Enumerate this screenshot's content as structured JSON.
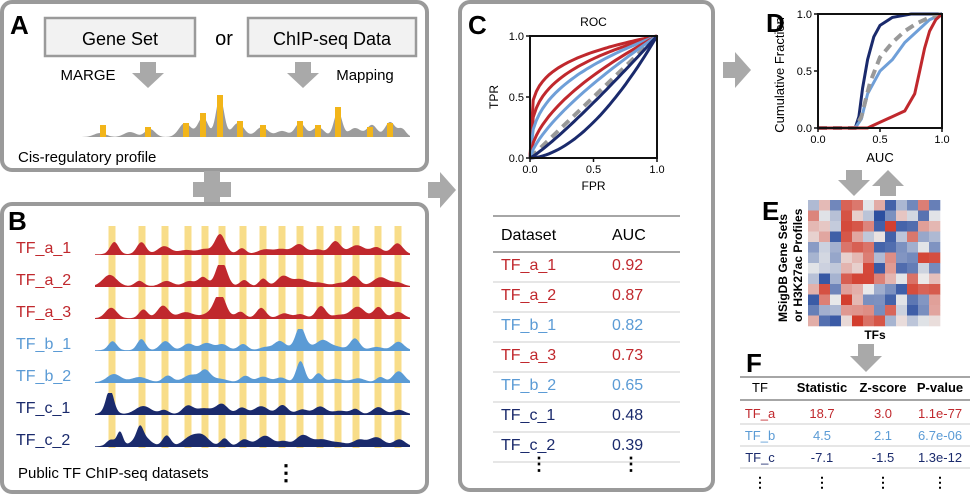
{
  "panels": {
    "A": {
      "letter": "A",
      "input_left": "Gene Set",
      "connector": "or",
      "input_right": "ChIP-seq Data",
      "method_left": "MARGE",
      "method_right": "Mapping",
      "profile_label": "Cis-regulatory profile"
    },
    "B": {
      "letter": "B",
      "tracks": [
        {
          "label": "TF_a_1",
          "color": "#c0282d"
        },
        {
          "label": "TF_a_2",
          "color": "#c0282d"
        },
        {
          "label": "TF_a_3",
          "color": "#c0282d"
        },
        {
          "label": "TF_b_1",
          "color": "#5b9bd5"
        },
        {
          "label": "TF_b_2",
          "color": "#5b9bd5"
        },
        {
          "label": "TF_c_1",
          "color": "#1a2a6c"
        },
        {
          "label": "TF_c_2",
          "color": "#1a2a6c"
        }
      ],
      "footer": "Public TF  ChIP-seq datasets",
      "more": "⋮"
    },
    "C": {
      "letter": "C",
      "table_header": [
        "Dataset",
        "AUC"
      ],
      "rows": [
        {
          "dataset": "TF_a_1",
          "auc": "0.92",
          "color": "#c0282d"
        },
        {
          "dataset": "TF_a_2",
          "auc": "0.87",
          "color": "#c0282d"
        },
        {
          "dataset": "TF_b_1",
          "auc": "0.82",
          "color": "#5b9bd5"
        },
        {
          "dataset": "TF_a_3",
          "auc": "0.73",
          "color": "#c0282d"
        },
        {
          "dataset": "TF_b_2",
          "auc": "0.65",
          "color": "#5b9bd5"
        },
        {
          "dataset": "TF_c_1",
          "auc": "0.48",
          "color": "#1a2a6c"
        },
        {
          "dataset": "TF_c_2",
          "auc": "0.39",
          "color": "#1a2a6c"
        }
      ],
      "more": "⋮"
    },
    "D": {
      "letter": "D"
    },
    "E": {
      "letter": "E",
      "ylabel_line1": "MSigDB Gene Sets",
      "ylabel_line2": "or H3K27ac Profiles",
      "xlabel": "TFs"
    },
    "F": {
      "letter": "F",
      "header": [
        "TF",
        "Statistic",
        "Z-score",
        "P-value"
      ],
      "rows": [
        {
          "tf": "TF_a",
          "statistic": "18.7",
          "zscore": "3.0",
          "pvalue": "1.1e-77",
          "color": "#c0282d"
        },
        {
          "tf": "TF_b",
          "statistic": "4.5",
          "zscore": "2.1",
          "pvalue": "6.7e-06",
          "color": "#5b9bd5"
        },
        {
          "tf": "TF_c",
          "statistic": "-7.1",
          "zscore": "-1.5",
          "pvalue": "1.3e-12",
          "color": "#1a2a6c"
        }
      ],
      "more": "⋮"
    }
  },
  "roc_chart": {
    "type": "line",
    "title": "ROC",
    "xlabel": "FPR",
    "ylabel": "TPR",
    "xlim": [
      0,
      1
    ],
    "ylim": [
      0,
      1
    ],
    "xticks": [
      "0.0",
      "0.5",
      "1.0"
    ],
    "yticks": [
      "0.0",
      "0.5",
      "1.0"
    ],
    "series_style": [
      {
        "color": "#c0282d",
        "strength": 0.92
      },
      {
        "color": "#c0282d",
        "strength": 0.87
      },
      {
        "color": "#6f9fd8",
        "strength": 0.82
      },
      {
        "color": "#c0282d",
        "strength": 0.73
      },
      {
        "color": "#6f9fd8",
        "strength": 0.65
      },
      {
        "color": "#1a2a6c",
        "strength": 0.48
      },
      {
        "color": "#1a2a6c",
        "strength": 0.39
      }
    ],
    "reference_color": "#999999"
  },
  "cdf_chart": {
    "type": "line",
    "xlabel": "AUC",
    "ylabel": "Cumulative Fraction",
    "xlim": [
      0,
      1
    ],
    "ylim": [
      0,
      1
    ],
    "xticks": [
      "0.0",
      "0.5",
      "1.0"
    ],
    "yticks": [
      "0.0",
      "0.5",
      "1.0"
    ],
    "series": [
      {
        "color": "#1a2a6c",
        "x": [
          0.0,
          0.3,
          0.33,
          0.36,
          0.4,
          0.45,
          0.5,
          0.6,
          0.75,
          1.0
        ],
        "y": [
          0,
          0,
          0.1,
          0.35,
          0.6,
          0.8,
          0.9,
          0.97,
          1.0,
          1.0
        ]
      },
      {
        "color": "#6f9fd8",
        "x": [
          0.0,
          0.3,
          0.35,
          0.4,
          0.5,
          0.6,
          0.7,
          0.8,
          0.9,
          1.0
        ],
        "y": [
          0,
          0,
          0.08,
          0.3,
          0.5,
          0.6,
          0.75,
          0.85,
          0.95,
          1.0
        ]
      },
      {
        "color": "#999999",
        "dashed": true,
        "x": [
          0.0,
          0.3,
          0.35,
          0.42,
          0.5,
          0.6,
          0.7,
          0.8,
          0.9,
          1.0
        ],
        "y": [
          0,
          0,
          0.1,
          0.4,
          0.62,
          0.75,
          0.85,
          0.92,
          0.97,
          1.0
        ]
      },
      {
        "color": "#c0282d",
        "x": [
          0.0,
          0.4,
          0.5,
          0.6,
          0.7,
          0.78,
          0.82,
          0.86,
          0.9,
          0.95,
          1.0
        ],
        "y": [
          0,
          0,
          0.05,
          0.1,
          0.15,
          0.3,
          0.5,
          0.7,
          0.85,
          0.95,
          1.0
        ]
      }
    ]
  },
  "heatmap": {
    "type": "heatmap",
    "rows": 12,
    "cols": 12,
    "low_color": "#2c4fa0",
    "high_color": "#d23b2b"
  },
  "colors": {
    "red": "#c0282d",
    "light_blue": "#5b9bd5",
    "navy": "#1a2a6c",
    "panel_border": "#9a9a9a",
    "arrow_gray": "#a9a9a9",
    "highlight": "#f7d774"
  }
}
